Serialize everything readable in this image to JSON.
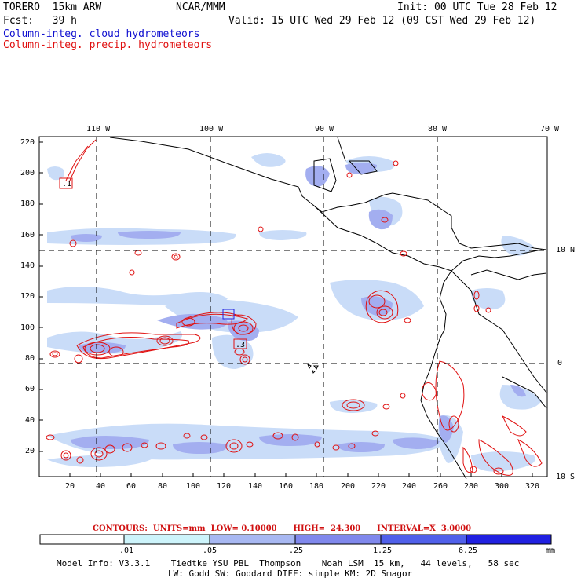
{
  "header": {
    "model": "TORERO  15km ARW",
    "org": "NCAR/MMM",
    "init": "Init: 00 UTC Tue 28 Feb 12",
    "fcst": "Fcst:   39 h",
    "valid": "Valid: 15 UTC Wed 29 Feb 12 (09 CST Wed 29 Feb 12)",
    "field1": "Column-integ. cloud hydrometeors",
    "field2": "Column-integ. precip. hydrometeors"
  },
  "axes": {
    "lon_labels": [
      "110 W",
      "100 W",
      "90 W",
      "80 W",
      "70 W"
    ],
    "lat_labels": [
      "10 N",
      "0",
      "10 S"
    ],
    "y_ticks": [
      "220",
      "200",
      "180",
      "160",
      "140",
      "120",
      "100",
      "80",
      "60",
      "40",
      "20"
    ],
    "x_ticks": [
      "20",
      "40",
      "60",
      "80",
      "100",
      "120",
      "140",
      "160",
      "180",
      "200",
      "220",
      "240",
      "260",
      "280",
      "300",
      "320"
    ]
  },
  "boxes": [
    ".1",
    ".3"
  ],
  "contour_info": "CONTOURS:  UNITS=mm  LOW= 0.10000      HIGH=  24.300      INTERVAL=X  3.0000",
  "colorbar": {
    "labels": [
      ".01",
      ".05",
      ".25",
      "1.25",
      "6.25"
    ],
    "unit": "mm",
    "colors": [
      "#ffffff",
      "#cdf4fb",
      "#a8b8f2",
      "#8088ec",
      "#5060ea",
      "#2020e0"
    ]
  },
  "footer": {
    "line1": "Model Info: V3.3.1    Tiedtke YSU PBL  Thompson    Noah LSM  15 km,   44 levels,   58 sec",
    "line2": "LW: Godd SW: Goddard DIFF: simple KM: 2D Smagor"
  }
}
